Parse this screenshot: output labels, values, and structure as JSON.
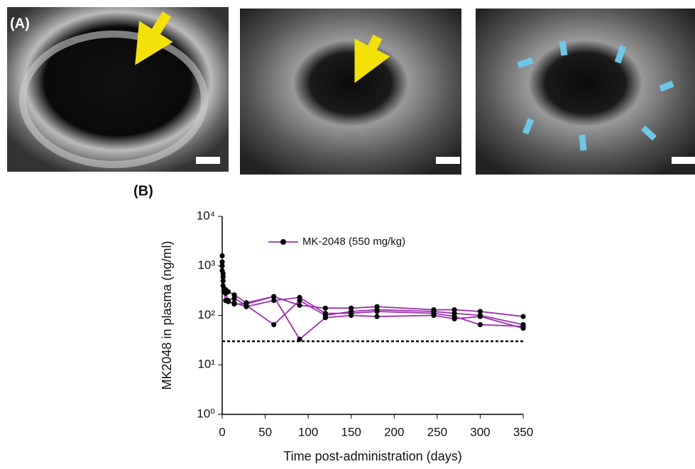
{
  "panel_labels": {
    "a": "(A)",
    "b": "(B)"
  },
  "chart_data": {
    "type": "line",
    "x_label": "Time post-administration (days)",
    "y_label": "MK2048 in plasma (ng/ml)",
    "x": [
      0,
      1,
      2,
      4,
      7,
      14,
      28,
      60,
      90,
      120,
      150,
      180,
      246,
      270,
      300,
      350
    ],
    "series": [
      {
        "name": "MK-2048 (550 mg/kg)",
        "color": "#9b2fae",
        "marker_color": "#000000",
        "subjects": [
          [
            1600,
            700,
            350,
            330,
            300,
            260,
            180,
            240,
            160,
            140,
            140,
            150,
            130,
            130,
            120,
            95
          ],
          [
            1200,
            600,
            320,
            200,
            200,
            220,
            160,
            65,
            200,
            100,
            120,
            130,
            120,
            110,
            100,
            65
          ],
          [
            1000,
            500,
            300,
            290,
            190,
            180,
            150,
            200,
            230,
            110,
            110,
            120,
            110,
            95,
            65,
            60
          ],
          [
            800,
            400,
            340,
            280,
            190,
            170,
            170,
            240,
            33,
            90,
            100,
            95,
            100,
            85,
            95,
            55
          ]
        ]
      }
    ],
    "threshold": 30,
    "log_y": true,
    "xlim": [
      0,
      350
    ],
    "xticks": [
      0,
      50,
      100,
      150,
      200,
      250,
      300,
      350
    ],
    "ylim": [
      1,
      10000
    ],
    "yticks": [
      {
        "value": 1,
        "label": "10⁰"
      },
      {
        "value": 10,
        "label": "10¹"
      },
      {
        "value": 100,
        "label": "10²"
      },
      {
        "value": 1000,
        "label": "10³"
      },
      {
        "value": 10000,
        "label": "10⁴"
      }
    ]
  }
}
